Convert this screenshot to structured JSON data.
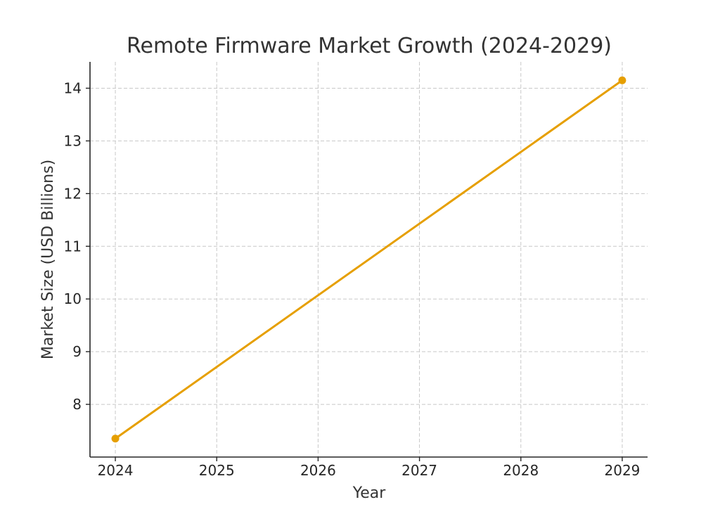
{
  "chart_data": {
    "type": "line",
    "title": "Remote Firmware Market Growth (2024-2029)",
    "xlabel": "Year",
    "ylabel": "Market Size (USD Billions)",
    "x_ticks": [
      "2024",
      "2025",
      "2026",
      "2027",
      "2028",
      "2029"
    ],
    "y_ticks": [
      "8",
      "9",
      "10",
      "11",
      "12",
      "13",
      "14"
    ],
    "xlim": [
      2023.75,
      2029.25
    ],
    "ylim": [
      7.0,
      14.5
    ],
    "grid": true,
    "series": [
      {
        "color": "#e69f00",
        "points": [
          {
            "x": 2024,
            "y": 7.35
          },
          {
            "x": 2029,
            "y": 14.15
          }
        ]
      }
    ]
  }
}
